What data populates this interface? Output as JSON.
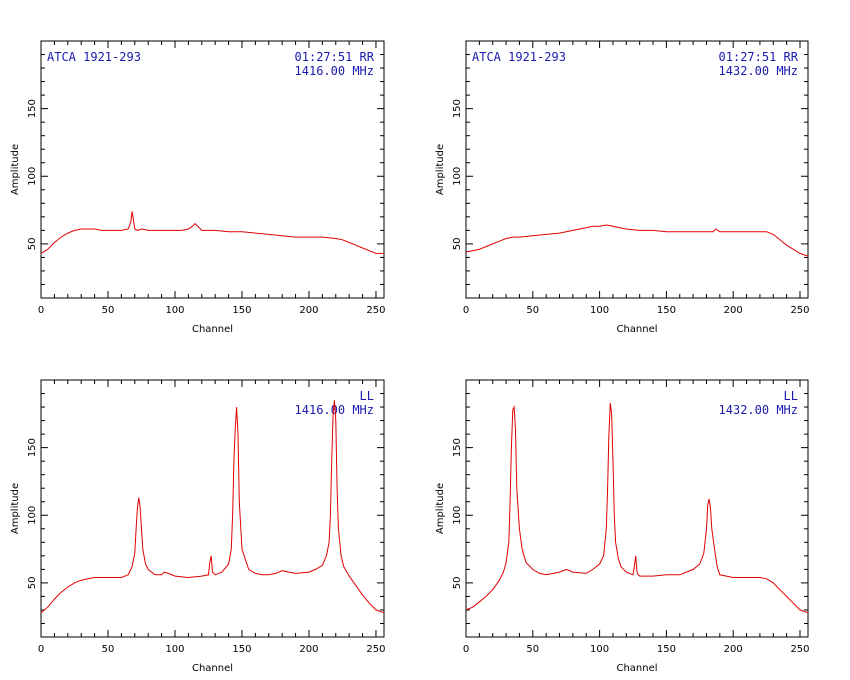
{
  "chart_data": [
    {
      "type": "line",
      "title": "",
      "xlabel": "Channel",
      "ylabel": "Amplitude",
      "xlim": [
        0,
        256
      ],
      "ylim": [
        10,
        200
      ],
      "xticks": [
        0,
        50,
        100,
        150,
        200,
        250
      ],
      "yticks": [
        50,
        100,
        150
      ],
      "annotation_left": "ATCA 1921-293",
      "annotation_right": [
        "01:27:51 RR",
        "1416.00 MHz"
      ],
      "line_color": "#e00000",
      "series": [
        {
          "x": [
            0,
            5,
            10,
            15,
            20,
            25,
            30,
            35,
            40,
            45,
            50,
            55,
            60,
            65,
            67,
            68,
            69,
            70,
            72,
            75,
            80,
            90,
            100,
            105,
            110,
            113,
            115,
            117,
            120,
            125,
            130,
            140,
            150,
            160,
            170,
            180,
            190,
            200,
            210,
            220,
            225,
            230,
            235,
            240,
            245,
            250,
            256
          ],
          "y": [
            43,
            46,
            51,
            55,
            58,
            60,
            61,
            61,
            61,
            60,
            60,
            60,
            60,
            61,
            66,
            74,
            68,
            61,
            60,
            61,
            60,
            60,
            60,
            60,
            61,
            63,
            65,
            63,
            60,
            60,
            60,
            59,
            59,
            58,
            57,
            56,
            55,
            55,
            55,
            54,
            53,
            51,
            49,
            47,
            45,
            43,
            43
          ]
        }
      ]
    },
    {
      "type": "line",
      "title": "",
      "xlabel": "Channel",
      "ylabel": "Amplitude",
      "xlim": [
        0,
        256
      ],
      "ylim": [
        10,
        200
      ],
      "xticks": [
        0,
        50,
        100,
        150,
        200,
        250
      ],
      "yticks": [
        50,
        100,
        150
      ],
      "annotation_left": "ATCA 1921-293",
      "annotation_right": [
        "01:27:51 RR",
        "1432.00 MHz"
      ],
      "line_color": "#e00000",
      "series": [
        {
          "x": [
            0,
            5,
            10,
            15,
            20,
            25,
            30,
            35,
            40,
            50,
            60,
            70,
            75,
            80,
            85,
            90,
            95,
            100,
            105,
            110,
            115,
            120,
            130,
            140,
            150,
            160,
            170,
            180,
            185,
            187,
            190,
            200,
            210,
            220,
            225,
            230,
            235,
            240,
            245,
            250,
            256
          ],
          "y": [
            44,
            45,
            46,
            48,
            50,
            52,
            54,
            55,
            55,
            56,
            57,
            58,
            59,
            60,
            61,
            62,
            63,
            63,
            64,
            63,
            62,
            61,
            60,
            60,
            59,
            59,
            59,
            59,
            59,
            61,
            59,
            59,
            59,
            59,
            59,
            57,
            53,
            49,
            46,
            43,
            41
          ]
        }
      ]
    },
    {
      "type": "line",
      "title": "",
      "xlabel": "Channel",
      "ylabel": "Amplitude",
      "xlim": [
        0,
        256
      ],
      "ylim": [
        10,
        200
      ],
      "xticks": [
        0,
        50,
        100,
        150,
        200,
        250
      ],
      "yticks": [
        50,
        100,
        150
      ],
      "annotation_left": "",
      "annotation_right": [
        "LL",
        "1416.00 MHz"
      ],
      "line_color": "#e00000",
      "series": [
        {
          "x": [
            0,
            5,
            10,
            15,
            20,
            25,
            30,
            35,
            40,
            50,
            60,
            65,
            68,
            70,
            71,
            72,
            73,
            74,
            75,
            76,
            78,
            80,
            85,
            90,
            92,
            95,
            100,
            110,
            120,
            125,
            126,
            127,
            128,
            130,
            135,
            140,
            142,
            143,
            144,
            145,
            146,
            147,
            148,
            150,
            155,
            160,
            165,
            170,
            175,
            180,
            185,
            190,
            200,
            205,
            210,
            213,
            215,
            216,
            217,
            218,
            219,
            220,
            221,
            222,
            224,
            226,
            230,
            235,
            240,
            245,
            250,
            256
          ],
          "y": [
            28,
            32,
            38,
            43,
            47,
            50,
            52,
            53,
            54,
            54,
            54,
            56,
            62,
            72,
            90,
            106,
            113,
            106,
            90,
            75,
            64,
            60,
            56,
            56,
            58,
            57,
            55,
            54,
            55,
            56,
            65,
            70,
            58,
            56,
            58,
            64,
            75,
            100,
            140,
            165,
            180,
            160,
            110,
            75,
            60,
            57,
            56,
            56,
            57,
            59,
            58,
            57,
            58,
            60,
            63,
            70,
            80,
            100,
            140,
            175,
            185,
            170,
            120,
            90,
            70,
            62,
            55,
            48,
            41,
            35,
            30,
            28
          ]
        }
      ]
    },
    {
      "type": "line",
      "title": "",
      "xlabel": "Channel",
      "ylabel": "Amplitude",
      "xlim": [
        0,
        256
      ],
      "ylim": [
        10,
        200
      ],
      "xticks": [
        0,
        50,
        100,
        150,
        200,
        250
      ],
      "yticks": [
        50,
        100,
        150
      ],
      "annotation_left": "",
      "annotation_right": [
        "LL",
        "1432.00 MHz"
      ],
      "line_color": "#e00000",
      "series": [
        {
          "x": [
            0,
            5,
            10,
            15,
            20,
            25,
            28,
            30,
            32,
            33,
            34,
            35,
            36,
            37,
            38,
            40,
            42,
            45,
            50,
            55,
            60,
            70,
            75,
            80,
            90,
            95,
            100,
            103,
            105,
            106,
            107,
            108,
            109,
            110,
            111,
            112,
            114,
            116,
            120,
            125,
            126,
            127,
            128,
            129,
            130,
            135,
            140,
            150,
            160,
            165,
            170,
            175,
            178,
            180,
            181,
            182,
            183,
            184,
            186,
            188,
            190,
            200,
            210,
            220,
            225,
            230,
            235,
            240,
            245,
            250,
            256
          ],
          "y": [
            30,
            32,
            36,
            40,
            45,
            52,
            58,
            65,
            80,
            110,
            150,
            178,
            180,
            165,
            120,
            90,
            75,
            65,
            60,
            57,
            56,
            58,
            60,
            58,
            57,
            60,
            64,
            70,
            90,
            120,
            160,
            183,
            175,
            140,
            100,
            80,
            68,
            62,
            58,
            56,
            62,
            70,
            58,
            56,
            55,
            55,
            55,
            56,
            56,
            58,
            60,
            64,
            72,
            90,
            108,
            112,
            105,
            90,
            75,
            62,
            56,
            54,
            54,
            54,
            53,
            50,
            45,
            40,
            35,
            30,
            28
          ]
        }
      ]
    }
  ]
}
